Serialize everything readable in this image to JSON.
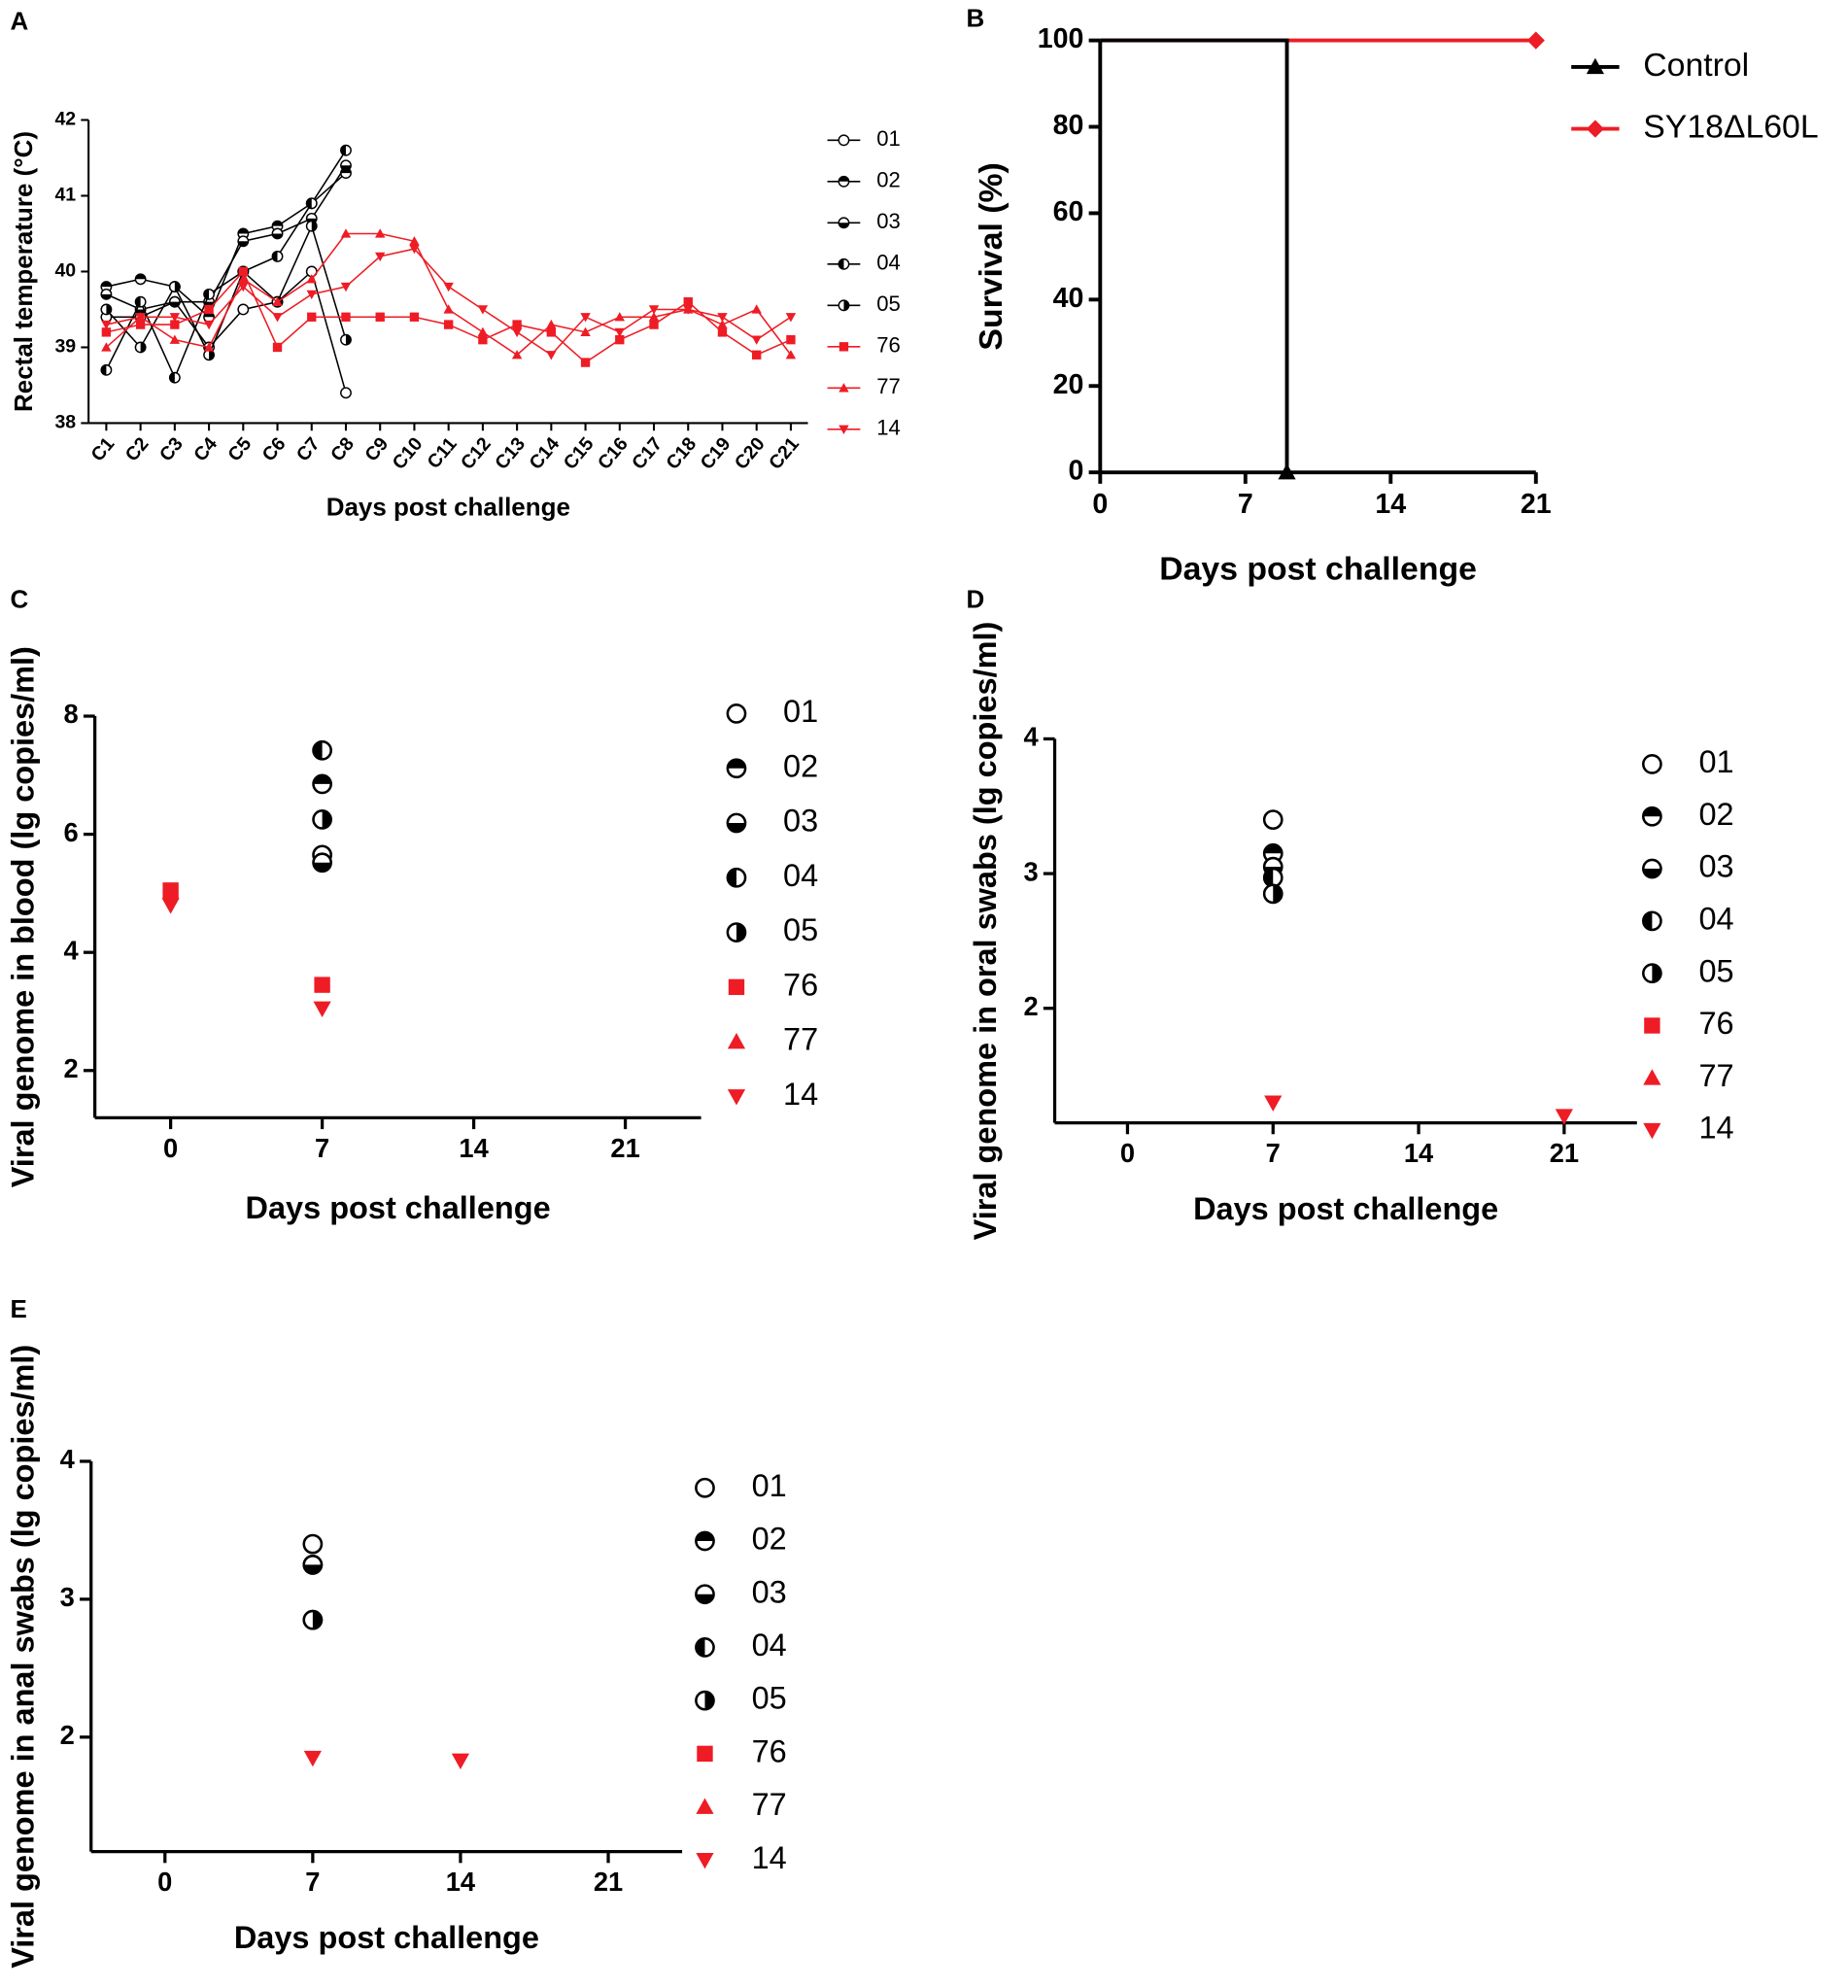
{
  "chart_data": [
    {
      "type": "line",
      "panel_label": "A",
      "x_label": "Days post challenge",
      "y_label": "Rectal temperature (°C)",
      "categories": [
        "C1",
        "C2",
        "C3",
        "C4",
        "C5",
        "C6",
        "C7",
        "C8",
        "C9",
        "C10",
        "C11",
        "C12",
        "C13",
        "C14",
        "C15",
        "C16",
        "C17",
        "C18",
        "C19",
        "C20",
        "C21"
      ],
      "ylim": [
        38,
        42
      ],
      "yticks": [
        38,
        39,
        40,
        41,
        42
      ],
      "legend": "right",
      "series": [
        {
          "name": "01",
          "color": "#000000",
          "marker": "circle-open",
          "values": [
            39.4,
            39.4,
            39.6,
            39.0,
            39.5,
            39.6,
            40.0,
            38.4,
            null,
            null,
            null,
            null,
            null,
            null,
            null,
            null,
            null,
            null,
            null,
            null,
            null
          ]
        },
        {
          "name": "02",
          "color": "#000000",
          "marker": "circle-top",
          "values": [
            39.8,
            39.9,
            39.8,
            39.4,
            40.5,
            40.6,
            40.9,
            41.3,
            null,
            null,
            null,
            null,
            null,
            null,
            null,
            null,
            null,
            null,
            null,
            null,
            null
          ]
        },
        {
          "name": "03",
          "color": "#000000",
          "marker": "circle-bottom",
          "values": [
            39.7,
            39.5,
            39.6,
            39.6,
            40.4,
            40.5,
            40.7,
            41.4,
            null,
            null,
            null,
            null,
            null,
            null,
            null,
            null,
            null,
            null,
            null,
            null,
            null
          ]
        },
        {
          "name": "04",
          "color": "#000000",
          "marker": "circle-left",
          "values": [
            38.7,
            39.6,
            38.6,
            39.7,
            40.0,
            40.2,
            40.9,
            41.6,
            null,
            null,
            null,
            null,
            null,
            null,
            null,
            null,
            null,
            null,
            null,
            null,
            null
          ]
        },
        {
          "name": "05",
          "color": "#000000",
          "marker": "circle-right",
          "values": [
            39.5,
            39.0,
            39.8,
            38.9,
            40.0,
            39.6,
            40.6,
            39.1,
            null,
            null,
            null,
            null,
            null,
            null,
            null,
            null,
            null,
            null,
            null,
            null,
            null
          ]
        },
        {
          "name": "76",
          "color": "#ee1c25",
          "marker": "square",
          "values": [
            39.2,
            39.3,
            39.3,
            39.5,
            40.0,
            39.0,
            39.4,
            39.4,
            39.4,
            39.4,
            39.3,
            39.1,
            39.3,
            39.2,
            38.8,
            39.1,
            39.3,
            39.6,
            39.2,
            38.9,
            39.1
          ]
        },
        {
          "name": "77",
          "color": "#ee1c25",
          "marker": "triangle-up",
          "values": [
            39.0,
            39.4,
            39.1,
            39.0,
            39.9,
            39.6,
            39.9,
            40.5,
            40.5,
            40.4,
            39.5,
            39.2,
            38.9,
            39.3,
            39.2,
            39.4,
            39.4,
            39.5,
            39.3,
            39.5,
            38.9
          ]
        },
        {
          "name": "14",
          "color": "#ee1c25",
          "marker": "triangle-down",
          "values": [
            39.3,
            39.4,
            39.4,
            39.3,
            39.8,
            39.4,
            39.7,
            39.8,
            40.2,
            40.3,
            39.8,
            39.5,
            39.2,
            38.9,
            39.4,
            39.2,
            39.5,
            39.5,
            39.4,
            39.1,
            39.4
          ]
        }
      ]
    },
    {
      "type": "line",
      "panel_label": "B",
      "x_label": "Days post challenge",
      "y_label": "Survival (%)",
      "xlim": [
        0,
        21
      ],
      "xticks": [
        0,
        7,
        14,
        21
      ],
      "ylim": [
        0,
        100
      ],
      "yticks": [
        0,
        20,
        40,
        60,
        80,
        100
      ],
      "legend": "upper right",
      "series": [
        {
          "name": "SY18ΔL60L",
          "color": "#ee1c25",
          "marker": "diamond",
          "x": [
            0,
            21
          ],
          "values": [
            100,
            100
          ]
        },
        {
          "name": "Control",
          "color": "#000000",
          "marker": "triangle-up",
          "x": [
            0,
            9,
            9
          ],
          "values": [
            100,
            100,
            0
          ]
        }
      ]
    },
    {
      "type": "scatter",
      "panel_label": "C",
      "x_label": "Days post challenge",
      "y_label": "Viral genome in blood (lg copies/ml)",
      "xlim": [
        -3.5,
        24.5
      ],
      "xticks": [
        0,
        7,
        14,
        21
      ],
      "ylim": [
        1.2,
        8
      ],
      "yticks": [
        2,
        4,
        6,
        8
      ],
      "legend": "right",
      "series": [
        {
          "name": "01",
          "color": "#000000",
          "marker": "circle-open",
          "x": [
            7
          ],
          "values": [
            5.65
          ]
        },
        {
          "name": "02",
          "color": "#000000",
          "marker": "circle-top",
          "x": [
            7
          ],
          "values": [
            6.85
          ]
        },
        {
          "name": "03",
          "color": "#000000",
          "marker": "circle-bottom",
          "x": [
            7
          ],
          "values": [
            5.52
          ]
        },
        {
          "name": "04",
          "color": "#000000",
          "marker": "circle-left",
          "x": [
            7
          ],
          "values": [
            7.42
          ]
        },
        {
          "name": "05",
          "color": "#000000",
          "marker": "circle-right",
          "x": [
            7
          ],
          "values": [
            6.25
          ]
        },
        {
          "name": "76",
          "color": "#ee1c25",
          "marker": "square",
          "x": [
            0,
            7
          ],
          "values": [
            5.05,
            3.45
          ]
        },
        {
          "name": "77",
          "color": "#ee1c25",
          "marker": "triangle-up",
          "x": [],
          "values": []
        },
        {
          "name": "14",
          "color": "#ee1c25",
          "marker": "triangle-down",
          "x": [
            0,
            7
          ],
          "values": [
            4.8,
            3.05
          ]
        }
      ]
    },
    {
      "type": "scatter",
      "panel_label": "D",
      "x_label": "Days post challenge",
      "y_label": "Viral genome in oral swabs (lg copies/ml)",
      "xlim": [
        -3.5,
        24.5
      ],
      "xticks": [
        0,
        7,
        14,
        21
      ],
      "ylim": [
        1.15,
        4
      ],
      "yticks": [
        2,
        3,
        4
      ],
      "legend": "right",
      "series": [
        {
          "name": "01",
          "color": "#000000",
          "marker": "circle-open",
          "x": [
            7
          ],
          "values": [
            3.4
          ]
        },
        {
          "name": "02",
          "color": "#000000",
          "marker": "circle-top",
          "x": [
            7
          ],
          "values": [
            3.15
          ]
        },
        {
          "name": "03",
          "color": "#000000",
          "marker": "circle-bottom",
          "x": [
            7
          ],
          "values": [
            3.05
          ]
        },
        {
          "name": "04",
          "color": "#000000",
          "marker": "circle-left",
          "x": [
            7
          ],
          "values": [
            2.97
          ]
        },
        {
          "name": "05",
          "color": "#000000",
          "marker": "circle-right",
          "x": [
            7
          ],
          "values": [
            2.85
          ]
        },
        {
          "name": "76",
          "color": "#ee1c25",
          "marker": "square",
          "x": [],
          "values": []
        },
        {
          "name": "77",
          "color": "#ee1c25",
          "marker": "triangle-up",
          "x": [],
          "values": []
        },
        {
          "name": "14",
          "color": "#ee1c25",
          "marker": "triangle-down",
          "x": [
            7,
            21
          ],
          "values": [
            1.3,
            1.2
          ]
        }
      ]
    },
    {
      "type": "scatter",
      "panel_label": "E",
      "x_label": "Days post challenge",
      "y_label": "Viral genome in anal swabs (lg copies/ml)",
      "xlim": [
        -3.5,
        24.5
      ],
      "xticks": [
        0,
        7,
        14,
        21
      ],
      "ylim": [
        1.17,
        4
      ],
      "yticks": [
        2,
        3,
        4
      ],
      "legend": "right",
      "series": [
        {
          "name": "01",
          "color": "#000000",
          "marker": "circle-open",
          "x": [
            7
          ],
          "values": [
            3.4
          ]
        },
        {
          "name": "02",
          "color": "#000000",
          "marker": "circle-top",
          "x": [
            7
          ],
          "values": [
            3.25
          ]
        },
        {
          "name": "03",
          "color": "#000000",
          "marker": "circle-bottom",
          "x": [
            7
          ],
          "values": [
            3.25
          ]
        },
        {
          "name": "04",
          "color": "#000000",
          "marker": "circle-left",
          "x": [
            7
          ],
          "values": [
            2.85
          ]
        },
        {
          "name": "05",
          "color": "#000000",
          "marker": "circle-right",
          "x": [
            7
          ],
          "values": [
            2.85
          ]
        },
        {
          "name": "76",
          "color": "#ee1c25",
          "marker": "square",
          "x": [],
          "values": []
        },
        {
          "name": "77",
          "color": "#ee1c25",
          "marker": "triangle-up",
          "x": [],
          "values": []
        },
        {
          "name": "14",
          "color": "#ee1c25",
          "marker": "triangle-down",
          "x": [
            7,
            14
          ],
          "values": [
            1.85,
            1.83
          ]
        }
      ]
    }
  ]
}
